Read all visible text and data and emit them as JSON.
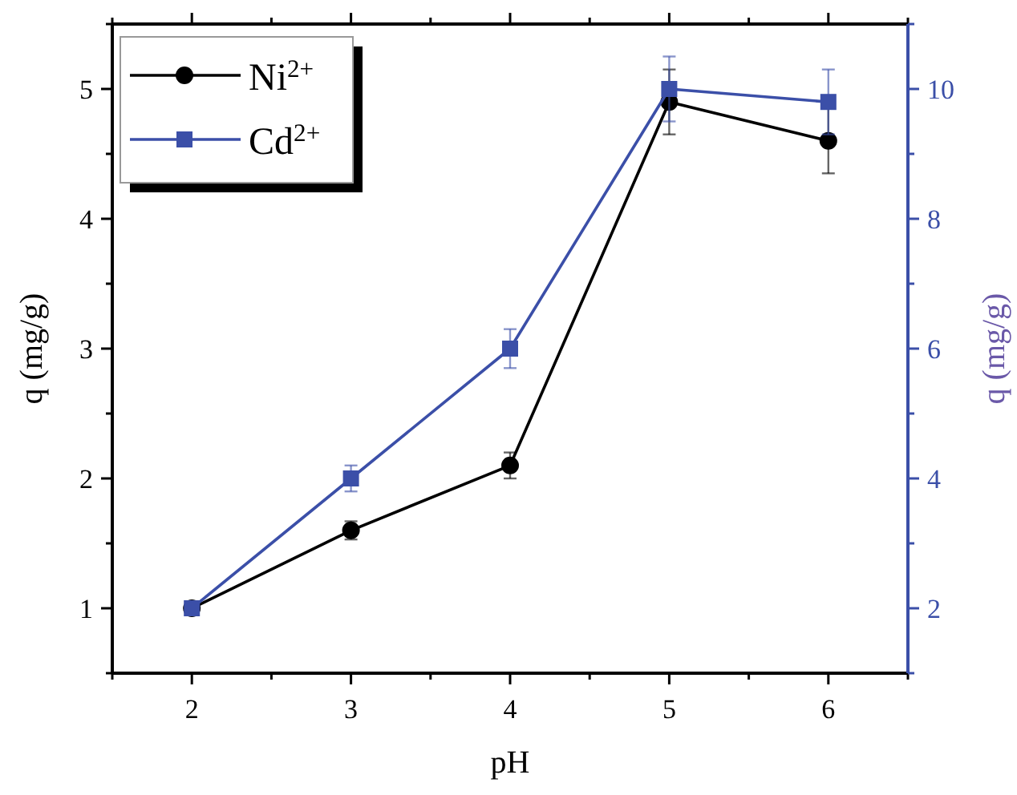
{
  "chart_data": {
    "type": "line",
    "xlabel": "pH",
    "ylabel": "q (mg/g)",
    "y2label": "q (mg/g)",
    "x": [
      2,
      3,
      4,
      5,
      6
    ],
    "series": [
      {
        "name": "Ni$^{2+}$",
        "color": "#000000",
        "marker": "circle",
        "values": [
          1,
          1.6,
          2.1,
          4.9,
          4.6
        ],
        "errors": [
          null,
          0.07,
          0.1,
          0.25,
          0.25
        ]
      },
      {
        "name": "Cd$^{2+}$",
        "color": "#3b4fa8",
        "marker": "square",
        "axis": "y2",
        "values": [
          2,
          4,
          6,
          10,
          9.8
        ],
        "errors": [
          null,
          0.2,
          0.3,
          0.5,
          0.5
        ]
      }
    ],
    "xlim": [
      1.5,
      6.5
    ],
    "xticks": [
      {
        "value": 1.5,
        "label": null
      },
      2,
      {
        "value": 2.5,
        "label": null
      },
      3,
      {
        "value": 3.5,
        "label": null
      },
      4,
      {
        "value": 4.5,
        "label": null
      },
      5,
      {
        "value": 5.5,
        "label": null
      },
      6,
      {
        "value": 6.5,
        "label": null
      }
    ],
    "ylim": [
      0.5,
      5.5
    ],
    "yticks": [
      {
        "value": 0.5,
        "label": null
      },
      1,
      {
        "value": 1.5,
        "label": null
      },
      2,
      {
        "value": 2.5,
        "label": null
      },
      3,
      {
        "value": 3.5,
        "label": null
      },
      4,
      {
        "value": 4.5,
        "label": null
      },
      5,
      {
        "value": 5.5,
        "label": null
      }
    ],
    "y2lim": [
      1,
      11
    ],
    "y2ticks": [
      {
        "value": 1,
        "label": null
      },
      2,
      {
        "value": 3,
        "label": null
      },
      4,
      {
        "value": 5,
        "label": null
      },
      6,
      {
        "value": 7,
        "label": null
      },
      8,
      {
        "value": 9,
        "label": null
      },
      10,
      {
        "value": 11,
        "label": null
      }
    ],
    "legend": "top left",
    "grid": false
  }
}
